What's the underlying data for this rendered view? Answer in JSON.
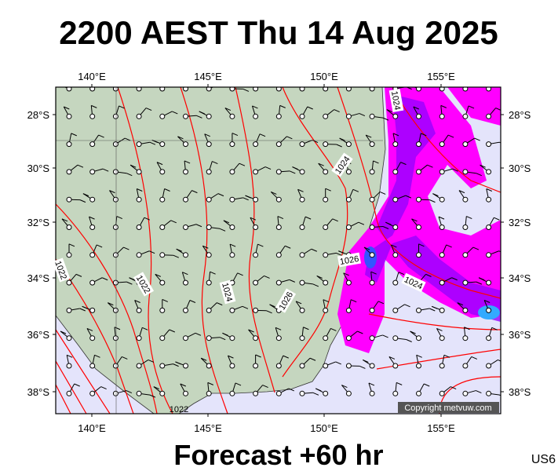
{
  "header": {
    "title": "2200 AEST Thu 14 Aug 2025"
  },
  "axes": {
    "top": [
      "140°E",
      "145°E",
      "150°E",
      "155°E"
    ],
    "bottom": [
      "140°E",
      "145°E",
      "150°E",
      "155°E"
    ],
    "left": [
      "28°S",
      "30°S",
      "32°S",
      "34°S",
      "36°S",
      "38°S"
    ],
    "right": [
      "28°S",
      "30°S",
      "32°S",
      "34°S",
      "36°S",
      "38°S"
    ]
  },
  "contour_labels": [
    "1024",
    "1022",
    "1024",
    "1026",
    "1026",
    "1024",
    "1022",
    "1022",
    "1024"
  ],
  "copyright": "Copyright metvuw.com",
  "footer": {
    "forecast": "Forecast +60 hr",
    "code": "US6"
  }
}
